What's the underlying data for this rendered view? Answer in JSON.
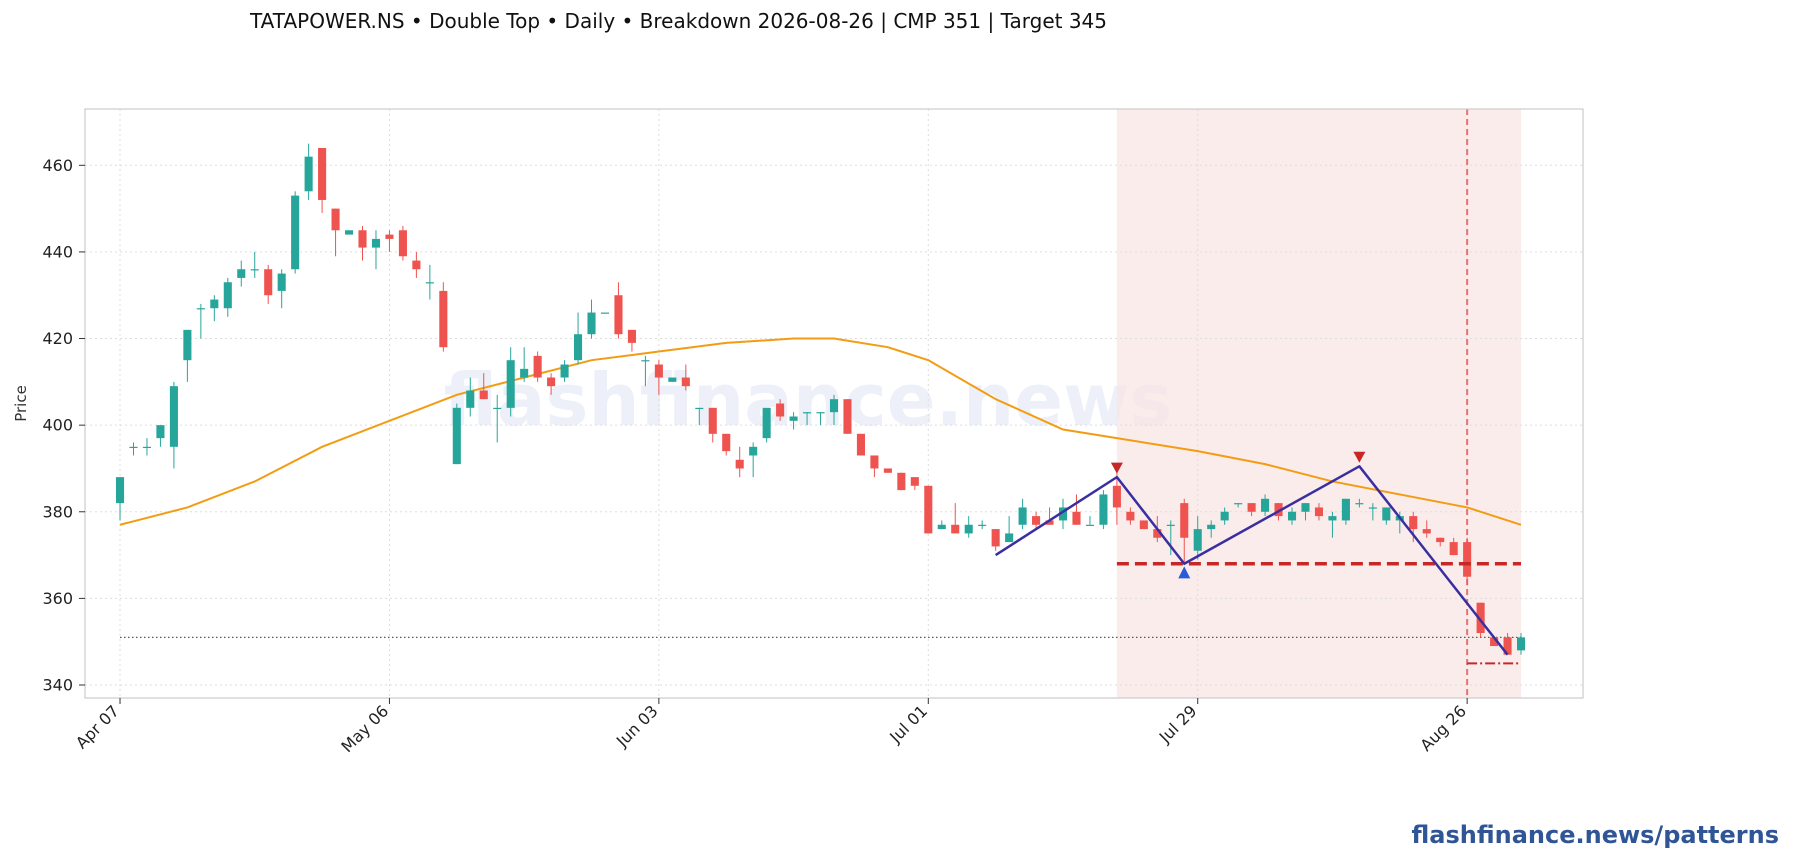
{
  "title": "TATAPOWER.NS  •  Double Top  •  Daily  •  Breakdown 2026-08-26  |  CMP 351  |  Target 345",
  "watermark": "flashfinance.news",
  "brand": "flashfinance.news/patterns",
  "colors": {
    "up": "#26a69a",
    "down": "#ef5350",
    "ma": "#f39c12",
    "pattern": "#3a2fa0",
    "neckline": "#c62828",
    "zone": "#f9e4e4",
    "breakdown": "#e57373",
    "cmp_line": "#555555"
  },
  "chart_data": {
    "type": "candlestick",
    "ylabel": "Price",
    "ylim": [
      337,
      473
    ],
    "yticks": [
      340,
      360,
      380,
      400,
      420,
      440,
      460
    ],
    "xlim": [
      -2.6,
      108.6
    ],
    "xticks": [
      {
        "label": "Apr 07",
        "index": 0
      },
      {
        "label": "May 06",
        "index": 20
      },
      {
        "label": "Jun 03",
        "index": 40
      },
      {
        "label": "Jul 01",
        "index": 60
      },
      {
        "label": "Jul 29",
        "index": 80
      },
      {
        "label": "Aug 26",
        "index": 100
      }
    ],
    "grid": true,
    "candles": [
      [
        382,
        388,
        378,
        388
      ],
      [
        395,
        396,
        393,
        395
      ],
      [
        395,
        397,
        393,
        395
      ],
      [
        397,
        400,
        395,
        400
      ],
      [
        395,
        410,
        390,
        409
      ],
      [
        415,
        422,
        410,
        422
      ],
      [
        427,
        428,
        420,
        427
      ],
      [
        427,
        430,
        424,
        429
      ],
      [
        427,
        434,
        425,
        433
      ],
      [
        434,
        438,
        432,
        436
      ],
      [
        436,
        440,
        434,
        436
      ],
      [
        436,
        437,
        428,
        430
      ],
      [
        431,
        436,
        427,
        435
      ],
      [
        436,
        454,
        435,
        453
      ],
      [
        454,
        465,
        452,
        462
      ],
      [
        464,
        464,
        449,
        452
      ],
      [
        450,
        450,
        439,
        445
      ],
      [
        444,
        445,
        444,
        445
      ],
      [
        445,
        446,
        438,
        441
      ],
      [
        441,
        445,
        436,
        443
      ],
      [
        444,
        445,
        440,
        443
      ],
      [
        445,
        446,
        438,
        439
      ],
      [
        438,
        440,
        434,
        436
      ],
      [
        433,
        437,
        429,
        433
      ],
      [
        431,
        433,
        417,
        418
      ],
      [
        391,
        405,
        391,
        404
      ],
      [
        404,
        411,
        402,
        408
      ],
      [
        408,
        412,
        406,
        406
      ],
      [
        404,
        407,
        396,
        404
      ],
      [
        404,
        418,
        402,
        415
      ],
      [
        411,
        418,
        410,
        413
      ],
      [
        416,
        417,
        410,
        411
      ],
      [
        411,
        412,
        407,
        409
      ],
      [
        411,
        415,
        410,
        414
      ],
      [
        415,
        426,
        414,
        421
      ],
      [
        421,
        429,
        420,
        426
      ],
      [
        426,
        426,
        426,
        426
      ],
      [
        430,
        433,
        420,
        421
      ],
      [
        422,
        422,
        417,
        419
      ],
      [
        415,
        416,
        409,
        415
      ],
      [
        414,
        415,
        407,
        411
      ],
      [
        410,
        411,
        410,
        411
      ],
      [
        411,
        414,
        408,
        409
      ],
      [
        404,
        404,
        400,
        404
      ],
      [
        404,
        404,
        396,
        398
      ],
      [
        398,
        398,
        393,
        394
      ],
      [
        392,
        395,
        388,
        390
      ],
      [
        393,
        396,
        388,
        395
      ],
      [
        397,
        404,
        396,
        404
      ],
      [
        405,
        406,
        401,
        402
      ],
      [
        401,
        403,
        399,
        402
      ],
      [
        403,
        403,
        400,
        403
      ],
      [
        403,
        403,
        400,
        403
      ],
      [
        403,
        407,
        400,
        406
      ],
      [
        406,
        406,
        398,
        398
      ],
      [
        398,
        398,
        393,
        393
      ],
      [
        393,
        393,
        388,
        390
      ],
      [
        390,
        390,
        389,
        389
      ],
      [
        389,
        389,
        385,
        385
      ],
      [
        388,
        388,
        385,
        386
      ],
      [
        386,
        386,
        375,
        375
      ],
      [
        376,
        378,
        376,
        377
      ],
      [
        377,
        382,
        375,
        375
      ],
      [
        375,
        379,
        374,
        377
      ],
      [
        377,
        378,
        376,
        377
      ],
      [
        376,
        376,
        371,
        372
      ],
      [
        373,
        379,
        373,
        375
      ],
      [
        377,
        383,
        376,
        381
      ],
      [
        379,
        380,
        376,
        377
      ],
      [
        378,
        381,
        377,
        377
      ],
      [
        378,
        383,
        376,
        381
      ],
      [
        380,
        384,
        377,
        377
      ],
      [
        377,
        379,
        377,
        377
      ],
      [
        377,
        385,
        376,
        384
      ],
      [
        386,
        391,
        377,
        381
      ],
      [
        380,
        381,
        377,
        378
      ],
      [
        378,
        378,
        376,
        376
      ],
      [
        376,
        379,
        373,
        374
      ],
      [
        377,
        378,
        370,
        377
      ],
      [
        382,
        383,
        368,
        374
      ],
      [
        371,
        379,
        369,
        376
      ],
      [
        376,
        378,
        374,
        377
      ],
      [
        378,
        381,
        377,
        380
      ],
      [
        382,
        382,
        381,
        382
      ],
      [
        382,
        382,
        379,
        380
      ],
      [
        380,
        384,
        379,
        383
      ],
      [
        382,
        382,
        378,
        379
      ],
      [
        378,
        381,
        377,
        380
      ],
      [
        380,
        382,
        378,
        382
      ],
      [
        381,
        382,
        378,
        379
      ],
      [
        378,
        380,
        374,
        379
      ],
      [
        378,
        383,
        377,
        383
      ],
      [
        382,
        383,
        381,
        382
      ],
      [
        381,
        382,
        378,
        381
      ],
      [
        378,
        381,
        377,
        381
      ],
      [
        378,
        380,
        375,
        379
      ],
      [
        379,
        380,
        373,
        376
      ],
      [
        376,
        378,
        374,
        375
      ],
      [
        374,
        374,
        372,
        373
      ],
      [
        373,
        374,
        370,
        370
      ],
      [
        373,
        374,
        363,
        365
      ],
      [
        359,
        359,
        351,
        352
      ],
      [
        351,
        351,
        349,
        349
      ],
      [
        351,
        352,
        347,
        347
      ],
      [
        348,
        352,
        347,
        351
      ]
    ],
    "ma_series": [
      {
        "index": 0,
        "value": 377
      },
      {
        "index": 5,
        "value": 381
      },
      {
        "index": 10,
        "value": 387
      },
      {
        "index": 15,
        "value": 395
      },
      {
        "index": 20,
        "value": 401
      },
      {
        "index": 25,
        "value": 407
      },
      {
        "index": 30,
        "value": 411
      },
      {
        "index": 35,
        "value": 415
      },
      {
        "index": 40,
        "value": 417
      },
      {
        "index": 45,
        "value": 419
      },
      {
        "index": 50,
        "value": 420
      },
      {
        "index": 53,
        "value": 420
      },
      {
        "index": 57,
        "value": 418
      },
      {
        "index": 60,
        "value": 415
      },
      {
        "index": 65,
        "value": 406
      },
      {
        "index": 70,
        "value": 399
      },
      {
        "index": 74,
        "value": 397
      },
      {
        "index": 80,
        "value": 394
      },
      {
        "index": 85,
        "value": 391
      },
      {
        "index": 90,
        "value": 387
      },
      {
        "index": 95,
        "value": 384
      },
      {
        "index": 100,
        "value": 381
      },
      {
        "index": 104,
        "value": 377
      }
    ],
    "pattern_line": [
      {
        "index": 65,
        "value": 370
      },
      {
        "index": 74,
        "value": 388
      },
      {
        "index": 79,
        "value": 368
      },
      {
        "index": 92,
        "value": 390.5
      },
      {
        "index": 103,
        "value": 347
      }
    ],
    "tops": [
      {
        "index": 74,
        "value": 389.5
      },
      {
        "index": 92,
        "value": 392
      }
    ],
    "trough": {
      "index": 79,
      "value": 366
    },
    "neckline": {
      "value": 368,
      "from_index": 74,
      "to_index": 104
    },
    "target": {
      "value": 345,
      "from_index": 100,
      "to_index": 104
    },
    "cmp": {
      "value": 351
    },
    "breakdown_index": 100,
    "pattern_zone": {
      "from_index": 74,
      "to_index": 104
    }
  }
}
